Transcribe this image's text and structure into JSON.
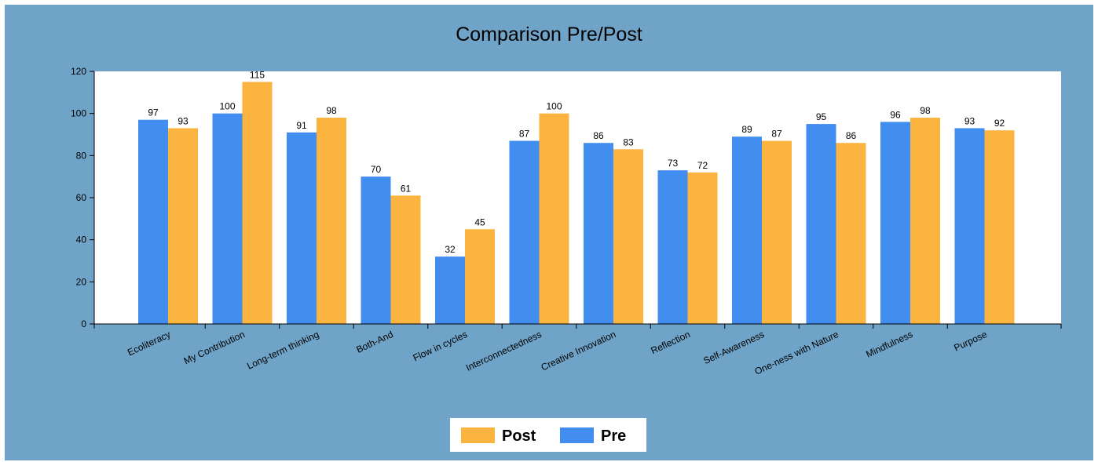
{
  "chart_data": {
    "type": "bar",
    "title": "Comparison Pre/Post",
    "xlabel": "",
    "ylabel": "",
    "ylim": [
      0,
      120
    ],
    "yticks": [
      0,
      20,
      40,
      60,
      80,
      100,
      120
    ],
    "grid": false,
    "legend_position": "bottom-center",
    "categories": [
      "Ecoliteracy",
      "My Contribution",
      "Long-term thinking",
      "Both-And",
      "Flow in cycles",
      "Interconnectedness",
      "Creative Innovation",
      "Reflection",
      "Self-Awareness",
      "One-ness with Nature",
      "Mindfulness",
      "Purpose"
    ],
    "series": [
      {
        "name": "Pre",
        "color": "#418df0",
        "values": [
          97,
          100,
          91,
          70,
          32,
          87,
          86,
          73,
          89,
          95,
          96,
          93
        ]
      },
      {
        "name": "Post",
        "color": "#fcb441",
        "values": [
          93,
          115,
          98,
          61,
          45,
          100,
          83,
          72,
          87,
          86,
          98,
          92
        ]
      }
    ],
    "legend_order": [
      "Post",
      "Pre"
    ]
  },
  "colors": {
    "background": "#6fa4c8",
    "plot_area": "#ffffff",
    "axis": "#000000"
  }
}
